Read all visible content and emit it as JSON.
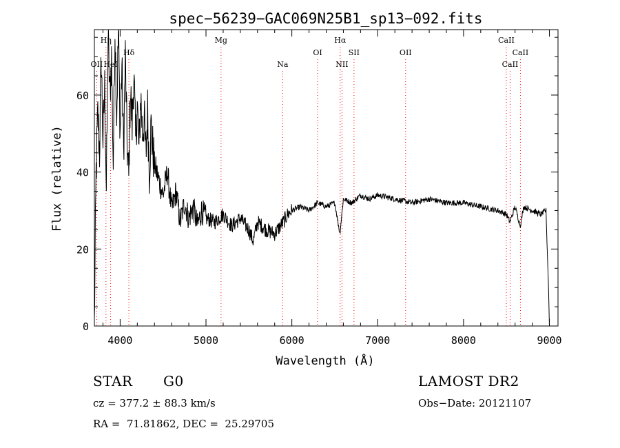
{
  "chart_data": {
    "type": "line",
    "title": "spec−56239−GAC069N25B1_sp13−092.fits",
    "xlabel": "Wavelength (Å)",
    "ylabel": "Flux (relative)",
    "xlim": [
      3700,
      9100
    ],
    "ylim": [
      0,
      77
    ],
    "x_ticks": [
      4000,
      5000,
      6000,
      7000,
      8000,
      9000
    ],
    "y_ticks": [
      0,
      20,
      40,
      60
    ],
    "grid": false,
    "line_color": "#000000",
    "marker_color": "#ff0000",
    "series": [
      {
        "x": [
          3700,
          3720,
          3740,
          3760,
          3780,
          3800,
          3820,
          3840,
          3860,
          3880,
          3900,
          3920,
          3940,
          3960,
          3980,
          4000,
          4020,
          4040,
          4060,
          4080,
          4100,
          4120,
          4140,
          4160,
          4180,
          4200,
          4220,
          4240,
          4260,
          4280,
          4300,
          4320,
          4340,
          4360,
          4380,
          4400,
          4450,
          4500,
          4550,
          4600,
          4650,
          4700,
          4750,
          4800,
          4850,
          4900,
          4950,
          5000,
          5100,
          5200,
          5300,
          5400,
          5500,
          5550,
          5600,
          5700,
          5800,
          5900,
          5950,
          6000,
          6100,
          6200,
          6300,
          6400,
          6500,
          6560,
          6600,
          6700,
          6800,
          6900,
          7000,
          7200,
          7400,
          7600,
          7800,
          8000,
          8200,
          8400,
          8500,
          8540,
          8600,
          8660,
          8700,
          8800,
          8900,
          8960,
          8990,
          9000
        ],
        "y": [
          0,
          40,
          55,
          45,
          70,
          48,
          62,
          35,
          75,
          60,
          70,
          42,
          78,
          55,
          77,
          50,
          68,
          45,
          70,
          48,
          38,
          62,
          52,
          66,
          48,
          58,
          45,
          60,
          50,
          54,
          44,
          56,
          40,
          52,
          46,
          42,
          38,
          34,
          40,
          30,
          35,
          27,
          32,
          28,
          31,
          26,
          30,
          28,
          27,
          29,
          26,
          28,
          25,
          22,
          27,
          25,
          24,
          27,
          29,
          30,
          31,
          30,
          32,
          31,
          32,
          24,
          33,
          32,
          34,
          33,
          34,
          33,
          32,
          33,
          32,
          32,
          31,
          30,
          29,
          27,
          31,
          26,
          31,
          30,
          29,
          30,
          10,
          0
        ]
      }
    ],
    "lines": [
      {
        "label": "OII",
        "x": 3727,
        "row": 3
      },
      {
        "label": "Hη",
        "x": 3835,
        "row": 1
      },
      {
        "label": "HeI",
        "x": 3889,
        "row": 3
      },
      {
        "label": "Hδ",
        "x": 4102,
        "row": 2
      },
      {
        "label": "Mg",
        "x": 5175,
        "row": 1
      },
      {
        "label": "Na",
        "x": 5893,
        "row": 3
      },
      {
        "label": "OI",
        "x": 6300,
        "row": 2
      },
      {
        "label": "Hα",
        "x": 6563,
        "row": 1
      },
      {
        "label": "NII",
        "x": 6584,
        "row": 3
      },
      {
        "label": "SII",
        "x": 6724,
        "row": 2
      },
      {
        "label": "OII",
        "x": 7325,
        "row": 2
      },
      {
        "label": "CaII",
        "x": 8498,
        "row": 1
      },
      {
        "label": "CaII",
        "x": 8542,
        "row": 3
      },
      {
        "label": "CaII",
        "x": 8662,
        "row": 2
      }
    ]
  },
  "info": {
    "object_class": "STAR",
    "subclass": "G0",
    "survey": "LAMOST DR2",
    "redshift_line": "cz = 377.2 ± 88.3 km/s",
    "obs_date": "Obs−Date: 20121107",
    "coords": "RA =  71.81862, DEC =  25.29705"
  }
}
